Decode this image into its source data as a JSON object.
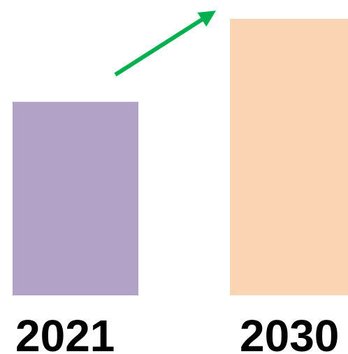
{
  "chart_data": {
    "type": "bar",
    "categories": [
      "2021",
      "2030"
    ],
    "values": [
      70,
      100
    ],
    "colors": [
      "#b3a2c8",
      "#fbd4b4"
    ],
    "ylim": [
      0,
      100
    ],
    "arrow_color": "#00b050"
  }
}
